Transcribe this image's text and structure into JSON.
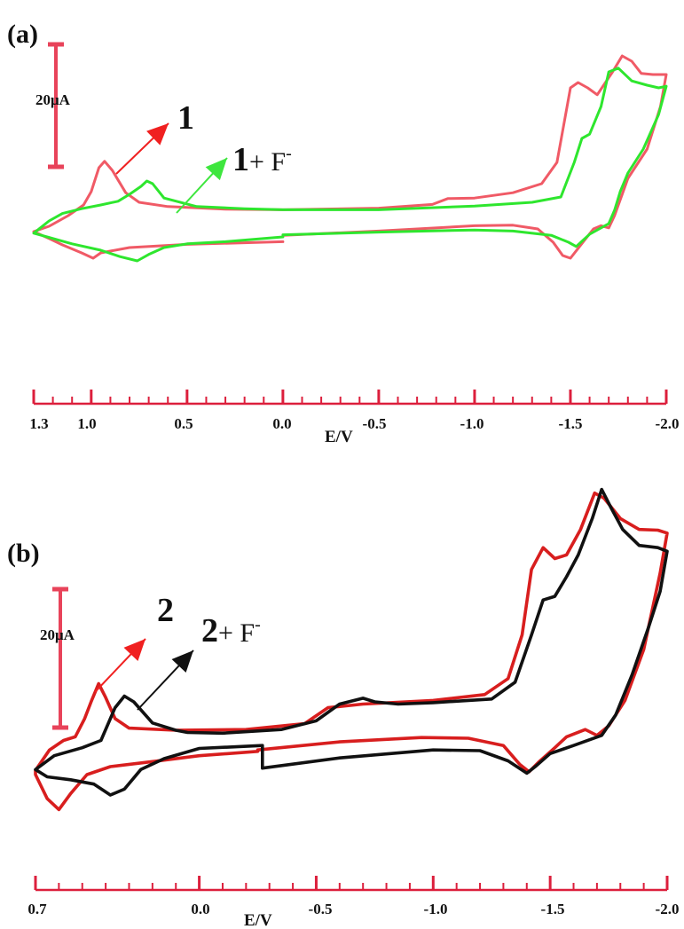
{
  "colors": {
    "axis": "#dc1f3c",
    "scalebar": "#e8435a",
    "curve_1": "#f05a66",
    "curve_1_F": "#2ee62e",
    "curve_2": "#d81e1e",
    "curve_2_F": "#111111",
    "arrow_red": "#f02020",
    "arrow_green": "#3ee63e",
    "arrow_black": "#111111"
  },
  "chart_data": [
    {
      "type": "line",
      "panel": "(a)",
      "xlabel": "E/V",
      "ylabel": "",
      "xlim": [
        1.3,
        -2.0
      ],
      "tick_labels": [
        "1.3",
        "1.0",
        "0.5",
        "0.0",
        "-0.5",
        "-1.0",
        "-1.5",
        "-2.0"
      ],
      "scale_bar": "20μA",
      "annotations": [
        {
          "text": "1",
          "series": "1"
        },
        {
          "text": "1",
          "suffix": "+ F",
          "superscript": "-",
          "series": "1 + F-"
        }
      ],
      "series": [
        {
          "name": "1",
          "color_key": "curve_1",
          "points": [
            [
              0.0,
              -0.4
            ],
            [
              0.5,
              -0.9
            ],
            [
              0.8,
              -1.5
            ],
            [
              0.95,
              -2.5
            ],
            [
              0.99,
              -3.5
            ],
            [
              1.05,
              -2.5
            ],
            [
              1.15,
              -1.0
            ],
            [
              1.22,
              0.2
            ],
            [
              1.3,
              1.5
            ],
            [
              1.22,
              2.5
            ],
            [
              1.12,
              4.5
            ],
            [
              1.04,
              6.5
            ],
            [
              1.0,
              9.0
            ],
            [
              0.96,
              13.5
            ],
            [
              0.93,
              14.7
            ],
            [
              0.89,
              13.0
            ],
            [
              0.82,
              8.8
            ],
            [
              0.75,
              7.0
            ],
            [
              0.6,
              6.2
            ],
            [
              0.3,
              5.7
            ],
            [
              0.0,
              5.6
            ],
            [
              -0.5,
              5.9
            ],
            [
              -0.78,
              6.6
            ],
            [
              -0.86,
              7.7
            ],
            [
              -1.0,
              7.8
            ],
            [
              -1.2,
              8.8
            ],
            [
              -1.35,
              10.5
            ],
            [
              -1.43,
              14.5
            ],
            [
              -1.47,
              22.5
            ],
            [
              -1.5,
              28.5
            ],
            [
              -1.54,
              29.5
            ],
            [
              -1.59,
              28.5
            ],
            [
              -1.64,
              27.2
            ],
            [
              -1.72,
              31.5
            ],
            [
              -1.77,
              34.5
            ],
            [
              -1.82,
              33.5
            ],
            [
              -1.87,
              31.2
            ],
            [
              -1.93,
              31.0
            ],
            [
              -2.0,
              31.0
            ],
            [
              -1.97,
              25.0
            ],
            [
              -1.9,
              17.0
            ],
            [
              -1.8,
              11.5
            ],
            [
              -1.73,
              4.5
            ],
            [
              -1.7,
              2.2
            ],
            [
              -1.66,
              2.6
            ],
            [
              -1.62,
              2.0
            ],
            [
              -1.55,
              -1.2
            ],
            [
              -1.5,
              -3.5
            ],
            [
              -1.46,
              -3.0
            ],
            [
              -1.41,
              -0.5
            ],
            [
              -1.33,
              2.0
            ],
            [
              -1.2,
              2.7
            ],
            [
              -1.0,
              2.6
            ],
            [
              -0.5,
              1.6
            ],
            [
              0.0,
              0.8
            ]
          ]
        },
        {
          "name": "1 + F-",
          "color_key": "curve_1_F",
          "points": [
            [
              0.0,
              0.5
            ],
            [
              0.3,
              -0.4
            ],
            [
              0.5,
              -0.8
            ],
            [
              0.62,
              -1.5
            ],
            [
              0.7,
              -2.8
            ],
            [
              0.76,
              -4.0
            ],
            [
              0.85,
              -3.2
            ],
            [
              0.95,
              -2.0
            ],
            [
              1.1,
              -0.8
            ],
            [
              1.22,
              0.4
            ],
            [
              1.3,
              1.2
            ],
            [
              1.22,
              3.5
            ],
            [
              1.15,
              4.9
            ],
            [
              1.05,
              5.8
            ],
            [
              0.95,
              6.5
            ],
            [
              0.86,
              7.2
            ],
            [
              0.8,
              8.5
            ],
            [
              0.74,
              10.0
            ],
            [
              0.71,
              11.0
            ],
            [
              0.68,
              10.5
            ],
            [
              0.62,
              7.8
            ],
            [
              0.45,
              6.2
            ],
            [
              0.2,
              5.8
            ],
            [
              0.0,
              5.6
            ],
            [
              -0.5,
              5.6
            ],
            [
              -1.0,
              6.3
            ],
            [
              -1.3,
              7.0
            ],
            [
              -1.45,
              8.0
            ],
            [
              -1.52,
              14.5
            ],
            [
              -1.56,
              19.0
            ],
            [
              -1.6,
              19.8
            ],
            [
              -1.66,
              25.0
            ],
            [
              -1.7,
              31.5
            ],
            [
              -1.75,
              32.2
            ],
            [
              -1.82,
              29.8
            ],
            [
              -1.9,
              29.0
            ],
            [
              -1.96,
              28.5
            ],
            [
              -2.0,
              28.8
            ],
            [
              -1.96,
              23.5
            ],
            [
              -1.88,
              17.0
            ],
            [
              -1.8,
              12.5
            ],
            [
              -1.76,
              9.0
            ],
            [
              -1.73,
              5.5
            ],
            [
              -1.7,
              3.0
            ],
            [
              -1.6,
              1.0
            ],
            [
              -1.53,
              -1.3
            ],
            [
              -1.49,
              -0.5
            ],
            [
              -1.4,
              0.8
            ],
            [
              -1.2,
              1.6
            ],
            [
              -1.0,
              1.8
            ],
            [
              -0.5,
              1.4
            ],
            [
              0.0,
              0.9
            ]
          ]
        }
      ]
    },
    {
      "type": "line",
      "panel": "(b)",
      "xlabel": "E/V",
      "ylabel": "",
      "xlim": [
        0.7,
        -2.0
      ],
      "tick_labels": [
        "0.7",
        "0.0",
        "-0.5",
        "-1.0",
        "-1.5",
        "-2.0"
      ],
      "scale_bar": "20μA",
      "annotations": [
        {
          "text": "2",
          "series": "2"
        },
        {
          "text": "2",
          "suffix": "+ F",
          "superscript": "-",
          "series": "2 + F-"
        }
      ],
      "series": [
        {
          "name": "2",
          "color_key": "curve_2",
          "points": [
            [
              -0.25,
              1.0
            ],
            [
              0.0,
              0.4
            ],
            [
              0.2,
              -0.4
            ],
            [
              0.38,
              -1.1
            ],
            [
              0.48,
              -2.2
            ],
            [
              0.55,
              -4.8
            ],
            [
              0.6,
              -7.0
            ],
            [
              0.65,
              -5.5
            ],
            [
              0.7,
              -2.2
            ],
            [
              0.7,
              -1.6
            ],
            [
              0.64,
              1.2
            ],
            [
              0.58,
              2.5
            ],
            [
              0.53,
              3.0
            ],
            [
              0.49,
              5.5
            ],
            [
              0.46,
              8.0
            ],
            [
              0.43,
              10.3
            ],
            [
              0.4,
              8.4
            ],
            [
              0.36,
              5.5
            ],
            [
              0.3,
              4.2
            ],
            [
              0.1,
              3.9
            ],
            [
              -0.2,
              4.0
            ],
            [
              -0.45,
              4.8
            ],
            [
              -0.55,
              7.0
            ],
            [
              -0.7,
              7.5
            ],
            [
              -1.0,
              8.0
            ],
            [
              -1.22,
              8.8
            ],
            [
              -1.32,
              11.0
            ],
            [
              -1.38,
              17.0
            ],
            [
              -1.42,
              26.0
            ],
            [
              -1.47,
              29.0
            ],
            [
              -1.52,
              27.5
            ],
            [
              -1.57,
              28.0
            ],
            [
              -1.63,
              31.5
            ],
            [
              -1.69,
              36.5
            ],
            [
              -1.73,
              35.8
            ],
            [
              -1.8,
              33.0
            ],
            [
              -1.88,
              31.5
            ],
            [
              -1.96,
              31.4
            ],
            [
              -2.0,
              31.0
            ],
            [
              -1.97,
              25.5
            ],
            [
              -1.9,
              15.0
            ],
            [
              -1.82,
              8.0
            ],
            [
              -1.75,
              4.5
            ],
            [
              -1.7,
              3.2
            ],
            [
              -1.65,
              4.0
            ],
            [
              -1.57,
              3.0
            ],
            [
              -1.52,
              1.5
            ],
            [
              -1.45,
              -0.5
            ],
            [
              -1.41,
              -1.8
            ],
            [
              -1.37,
              -0.8
            ],
            [
              -1.3,
              1.8
            ],
            [
              -1.15,
              2.8
            ],
            [
              -0.95,
              2.9
            ],
            [
              -0.6,
              2.3
            ],
            [
              -0.25,
              1.2
            ]
          ]
        },
        {
          "name": "2 + F-",
          "color_key": "curve_2_F",
          "points": [
            [
              -0.27,
              1.8
            ],
            [
              -0.27,
              -1.3
            ],
            [
              -0.6,
              0.1
            ],
            [
              -1.0,
              1.2
            ],
            [
              -1.2,
              1.1
            ],
            [
              -1.32,
              -0.3
            ],
            [
              -1.4,
              -2.0
            ],
            [
              -1.44,
              -1.0
            ],
            [
              -1.5,
              0.7
            ],
            [
              -1.6,
              1.8
            ],
            [
              -1.72,
              3.2
            ],
            [
              -1.78,
              6.0
            ],
            [
              -1.85,
              11.5
            ],
            [
              -1.92,
              18.0
            ],
            [
              -1.97,
              23.0
            ],
            [
              -2.0,
              28.5
            ],
            [
              -1.96,
              29.0
            ],
            [
              -1.88,
              29.3
            ],
            [
              -1.81,
              31.5
            ],
            [
              -1.76,
              34.5
            ],
            [
              -1.72,
              37.0
            ],
            [
              -1.68,
              33.0
            ],
            [
              -1.62,
              28.0
            ],
            [
              -1.57,
              25.0
            ],
            [
              -1.52,
              22.3
            ],
            [
              -1.47,
              21.8
            ],
            [
              -1.42,
              17.0
            ],
            [
              -1.35,
              10.5
            ],
            [
              -1.25,
              8.2
            ],
            [
              -1.0,
              7.7
            ],
            [
              -0.85,
              7.5
            ],
            [
              -0.75,
              7.8
            ],
            [
              -0.7,
              8.3
            ],
            [
              -0.6,
              7.5
            ],
            [
              -0.5,
              5.2
            ],
            [
              -0.35,
              4.0
            ],
            [
              -0.1,
              3.5
            ],
            [
              0.05,
              3.6
            ],
            [
              0.1,
              3.9
            ],
            [
              0.2,
              4.9
            ],
            [
              0.28,
              7.8
            ],
            [
              0.32,
              8.6
            ],
            [
              0.36,
              7.0
            ],
            [
              0.42,
              2.5
            ],
            [
              0.5,
              1.5
            ],
            [
              0.62,
              0.4
            ],
            [
              0.7,
              -1.5
            ],
            [
              0.65,
              -2.5
            ],
            [
              0.55,
              -2.9
            ],
            [
              0.45,
              -3.5
            ],
            [
              0.38,
              -5.0
            ],
            [
              0.32,
              -4.2
            ],
            [
              0.25,
              -1.5
            ],
            [
              0.15,
              0.0
            ],
            [
              0.0,
              1.4
            ],
            [
              -0.27,
              1.8
            ]
          ]
        }
      ]
    }
  ]
}
